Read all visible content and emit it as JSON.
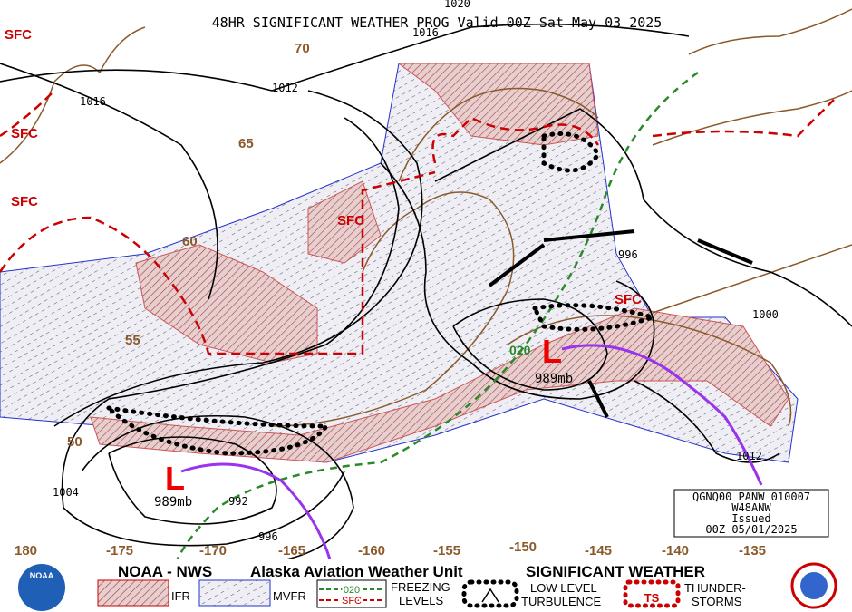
{
  "title": "48HR SIGNIFICANT WEATHER PROG Valid 00Z Sat May 03 2025",
  "isobar_labels": [
    "1020",
    "1016",
    "1016",
    "1012",
    "996",
    "1000",
    "1012",
    "1004",
    "992",
    "996"
  ],
  "latitude_labels": [
    "70",
    "65",
    "60",
    "55",
    "50"
  ],
  "longitude_labels": [
    "180",
    "-175",
    "-170",
    "-165",
    "-160",
    "-155",
    "-150",
    "-145",
    "-140",
    "-135"
  ],
  "surface_freezing_labels": [
    "SFC",
    "SFC",
    "SFC",
    "SFC",
    "SFC"
  ],
  "freezing_level_label": "020",
  "pressure_centers": [
    {
      "symbol": "L",
      "label": "989mb"
    },
    {
      "symbol": "L",
      "label": "989mb"
    }
  ],
  "issuance_box": [
    "QGNQ00 PANW 010007",
    "W48ANW",
    "Issued",
    "00Z 05/01/2025"
  ],
  "legend": {
    "agency": "NOAA - NWS",
    "unit": "Alaska Aviation Weather Unit",
    "product": "SIGNIFICANT WEATHER",
    "noaa_logo": "NOAA",
    "ifr": "IFR",
    "mvfr": "MVFR",
    "freezing_sample_level": "020",
    "freezing_sample_sfc": "SFC",
    "freezing_levels": [
      "FREEZING",
      "LEVELS"
    ],
    "turbulence": [
      "LOW LEVEL",
      "TURBULENCE"
    ],
    "thunderstorms": [
      "THUNDER-",
      "STORMS"
    ],
    "thunderstorm_symbol": "TS"
  }
}
